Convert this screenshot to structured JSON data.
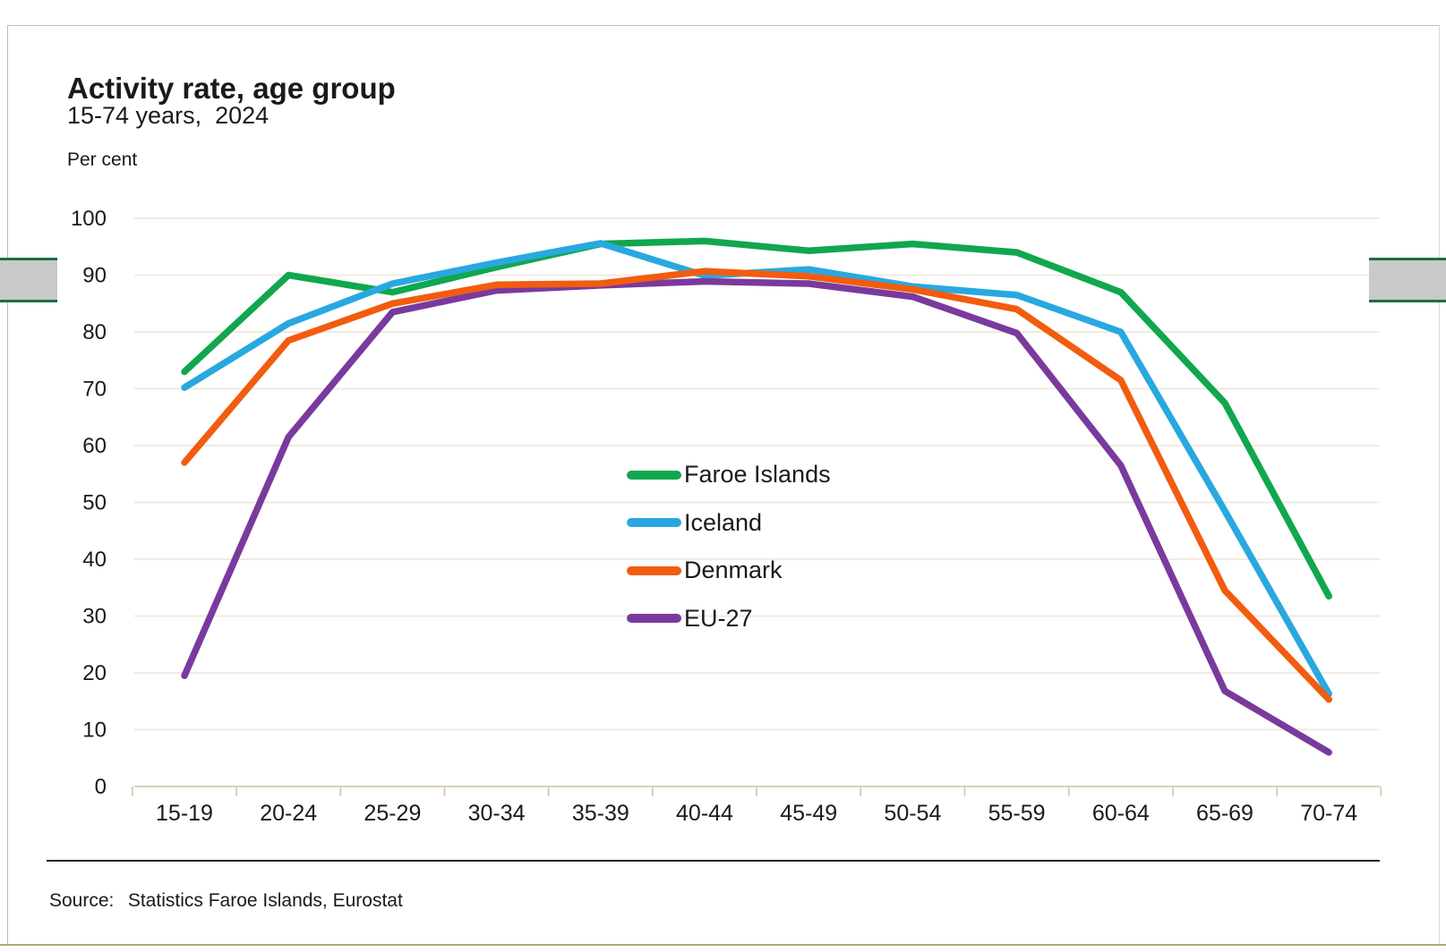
{
  "page": {
    "title": "Activity rate, age group",
    "subtitle": "15-74 years,  2024",
    "unit_label": "Per cent",
    "source_label": "Source:",
    "source_value": "Statistics Faroe Islands, Eurostat"
  },
  "chart_data": {
    "type": "line",
    "title": "Activity rate, age group",
    "subtitle": "15-74 years, 2024",
    "ylabel": "Per cent",
    "xlabel": "",
    "categories": [
      "15-19",
      "20-24",
      "25-29",
      "30-34",
      "35-39",
      "40-44",
      "45-49",
      "50-54",
      "55-59",
      "60-64",
      "65-69",
      "70-74"
    ],
    "series": [
      {
        "name": "Faroe Islands",
        "color": "#10a74e",
        "values": [
          73,
          90,
          87,
          91.4,
          95.5,
          96,
          94.3,
          95.5,
          94,
          87,
          67.5,
          33.5
        ]
      },
      {
        "name": "Iceland",
        "color": "#29a8e0",
        "values": [
          70.2,
          81.5,
          88.5,
          92.2,
          95.6,
          89.9,
          91,
          88,
          86.5,
          80,
          48.5,
          16.3
        ]
      },
      {
        "name": "Denmark",
        "color": "#f25c0f",
        "values": [
          57,
          78.5,
          85,
          88.3,
          88.5,
          90.7,
          89.8,
          87.5,
          84,
          71.5,
          34.5,
          15.3
        ]
      },
      {
        "name": "EU-27",
        "color": "#7a3a9d",
        "values": [
          19.5,
          61.5,
          83.5,
          87.3,
          88.2,
          88.9,
          88.5,
          86.2,
          79.8,
          56.5,
          16.8,
          6
        ]
      }
    ],
    "draw_order": [
      0,
      1,
      3,
      2
    ],
    "ylim": [
      0,
      100
    ],
    "y_ticks": [
      0,
      10,
      20,
      30,
      40,
      50,
      60,
      70,
      80,
      90,
      100
    ],
    "grid": "horizontal",
    "legend_position": "center"
  },
  "colors": {
    "gridline": "#f0ebdf",
    "axis_line": "#d8cfba",
    "text": "#1a1a1a",
    "source_rule": "#262626",
    "frame_border": "#b9b9b9",
    "bottom_border": "#b3a878",
    "edge_box_fill": "#c9c9c9",
    "edge_box_border": "#1e6e41"
  }
}
